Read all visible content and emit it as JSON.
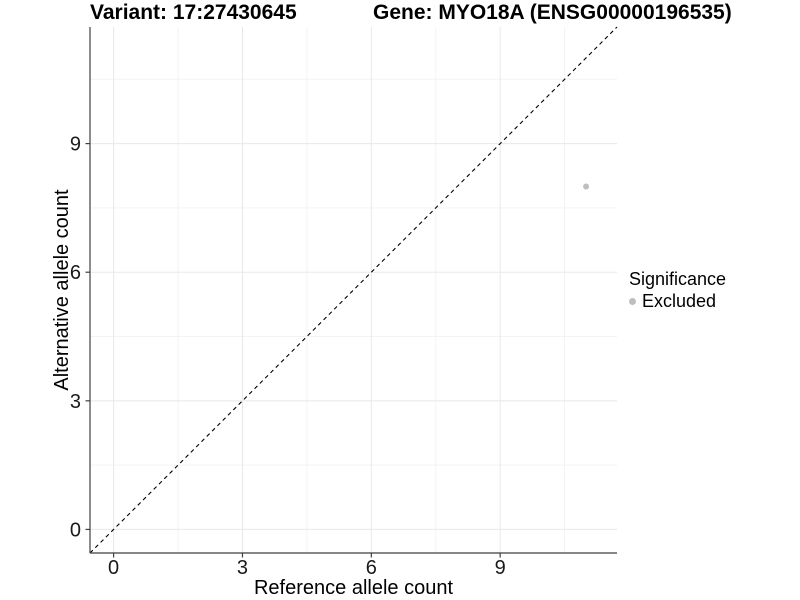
{
  "header": {
    "variant_title": "Variant: 17:27430645",
    "gene_title": "Gene: MYO18A (ENSG00000196535)"
  },
  "chart_data": {
    "type": "scatter",
    "xlabel": "Reference allele count",
    "ylabel": "Alternative allele count",
    "xlim": [
      -0.55,
      11.72
    ],
    "ylim": [
      -0.55,
      11.72
    ],
    "x_ticks": [
      0,
      3,
      6,
      9
    ],
    "y_ticks": [
      0,
      3,
      6,
      9
    ],
    "minor_gridlines": [
      1.5,
      4.5,
      7.5,
      10.5
    ],
    "grid": true,
    "identity_line": {
      "type": "y=x",
      "style": "dashed",
      "color": "#000000"
    },
    "series": [
      {
        "name": "Excluded",
        "color": "#bebebe",
        "points": [
          {
            "x": 11,
            "y": 8
          }
        ]
      }
    ],
    "legend": {
      "title": "Significance",
      "position": "right",
      "items": [
        {
          "label": "Excluded",
          "color": "#bebebe"
        }
      ]
    }
  },
  "colors": {
    "background": "#ffffff",
    "grid_major": "#e8e8e8",
    "grid_minor": "#f3f3f3",
    "axis_line": "#3f3f3f",
    "tick_label": "#1a1a1a",
    "point": "#bebebe",
    "dashed_line": "#000000"
  }
}
